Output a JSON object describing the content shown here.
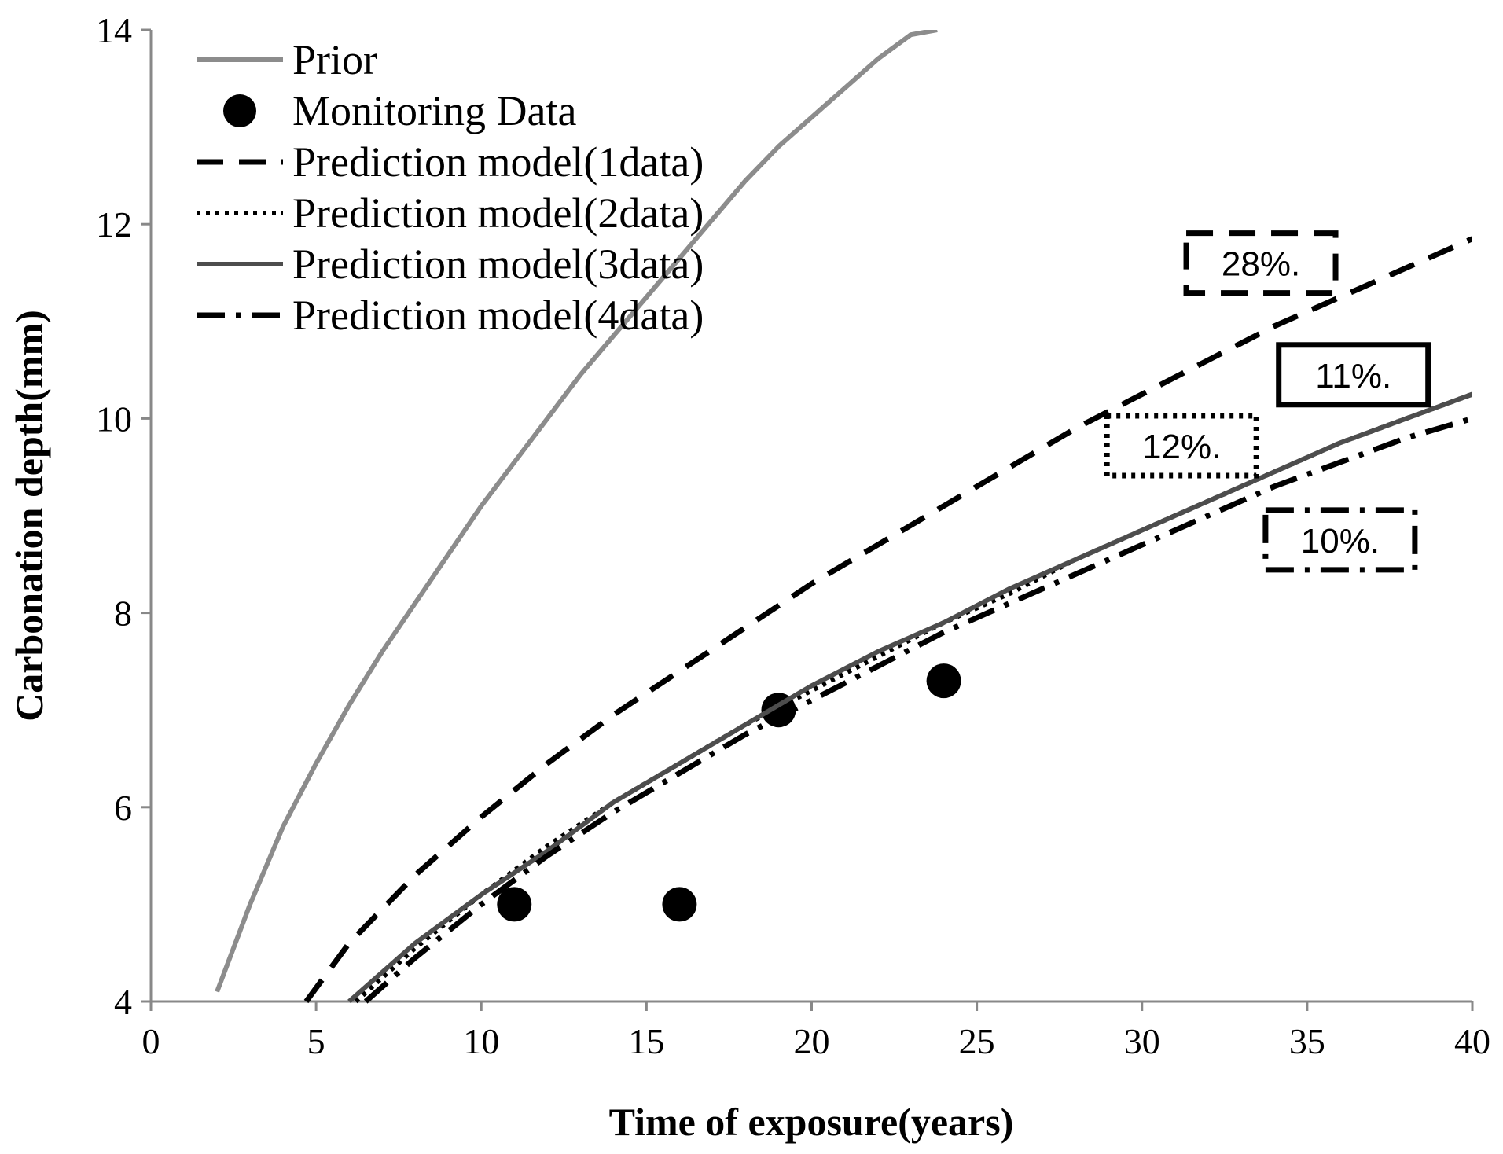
{
  "chart_data": {
    "type": "line",
    "xlabel": "Time of exposure(years)",
    "ylabel": "Carbonation depth(mm)",
    "xlim": [
      0,
      40
    ],
    "ylim": [
      4,
      14
    ],
    "xticks": [
      0,
      5,
      10,
      15,
      20,
      25,
      30,
      35,
      40
    ],
    "yticks": [
      4,
      6,
      8,
      10,
      12,
      14
    ],
    "grid": false,
    "legend_position": "top-left",
    "series": [
      {
        "name": "Prior",
        "style": "solid",
        "color": "#8c8c8c",
        "x": [
          2,
          3,
          4,
          5,
          6,
          7,
          8,
          9,
          10,
          11,
          12,
          13,
          14,
          15,
          16,
          17,
          18,
          19,
          20,
          21,
          22,
          23,
          23.8
        ],
        "y": [
          4.1,
          5.0,
          5.8,
          6.45,
          7.05,
          7.6,
          8.1,
          8.6,
          9.1,
          9.55,
          10.0,
          10.45,
          10.85,
          11.25,
          11.65,
          12.05,
          12.45,
          12.8,
          13.1,
          13.4,
          13.7,
          13.95,
          14.0
        ]
      },
      {
        "name": "Monitoring Data",
        "style": "marker",
        "color": "#000000",
        "x": [
          11,
          16,
          19,
          24
        ],
        "y": [
          5.0,
          5.0,
          7.0,
          7.3
        ]
      },
      {
        "name": "Prediction model(1data)",
        "style": "dashed",
        "color": "#000000",
        "x": [
          4.7,
          6,
          8,
          10,
          12,
          14,
          16,
          18,
          20,
          22,
          24,
          26,
          28,
          30,
          32,
          34,
          36,
          38,
          40
        ],
        "y": [
          4.0,
          4.6,
          5.3,
          5.9,
          6.45,
          6.95,
          7.4,
          7.85,
          8.3,
          8.7,
          9.1,
          9.5,
          9.9,
          10.25,
          10.6,
          10.95,
          11.25,
          11.55,
          11.85
        ]
      },
      {
        "name": "Prediction model(2data)",
        "style": "dotted",
        "color": "#000000",
        "x": [
          6.2,
          8,
          10,
          12,
          14,
          16,
          18,
          20,
          22,
          24,
          26,
          28,
          30,
          32,
          34,
          36,
          38,
          40
        ],
        "y": [
          4.0,
          4.55,
          5.1,
          5.6,
          6.05,
          6.45,
          6.85,
          7.2,
          7.55,
          7.9,
          8.2,
          8.55,
          8.85,
          9.15,
          9.45,
          9.75,
          10.0,
          10.25
        ]
      },
      {
        "name": "Prediction model(3data)",
        "style": "solid",
        "color": "#4d4d4d",
        "x": [
          6,
          8,
          10,
          12,
          14,
          16,
          18,
          20,
          22,
          24,
          26,
          28,
          30,
          32,
          34,
          36,
          38,
          40
        ],
        "y": [
          4.0,
          4.6,
          5.1,
          5.55,
          6.05,
          6.45,
          6.85,
          7.25,
          7.6,
          7.9,
          8.25,
          8.55,
          8.85,
          9.15,
          9.45,
          9.75,
          10.0,
          10.25
        ]
      },
      {
        "name": "Prediction model(4data)",
        "style": "dashdot",
        "color": "#000000",
        "x": [
          6.5,
          8,
          10,
          12,
          14,
          16,
          18,
          20,
          22,
          24,
          26,
          28,
          30,
          32,
          34,
          36,
          38,
          40
        ],
        "y": [
          4.0,
          4.45,
          5.0,
          5.5,
          5.95,
          6.35,
          6.75,
          7.1,
          7.45,
          7.8,
          8.1,
          8.4,
          8.7,
          9.0,
          9.3,
          9.55,
          9.8,
          10.0
        ]
      }
    ],
    "annotations": [
      {
        "text": "28%.",
        "x": 33.6,
        "y": 11.6,
        "series": "Prediction model(1data)"
      },
      {
        "text": "11%.",
        "x": 36.4,
        "y": 10.45,
        "series": "Prediction model(3data)"
      },
      {
        "text": "12%.",
        "x": 31.2,
        "y": 9.72,
        "series": "Prediction model(2data)"
      },
      {
        "text": "10%.",
        "x": 36.0,
        "y": 8.75,
        "series": "Prediction model(4data)"
      }
    ]
  }
}
